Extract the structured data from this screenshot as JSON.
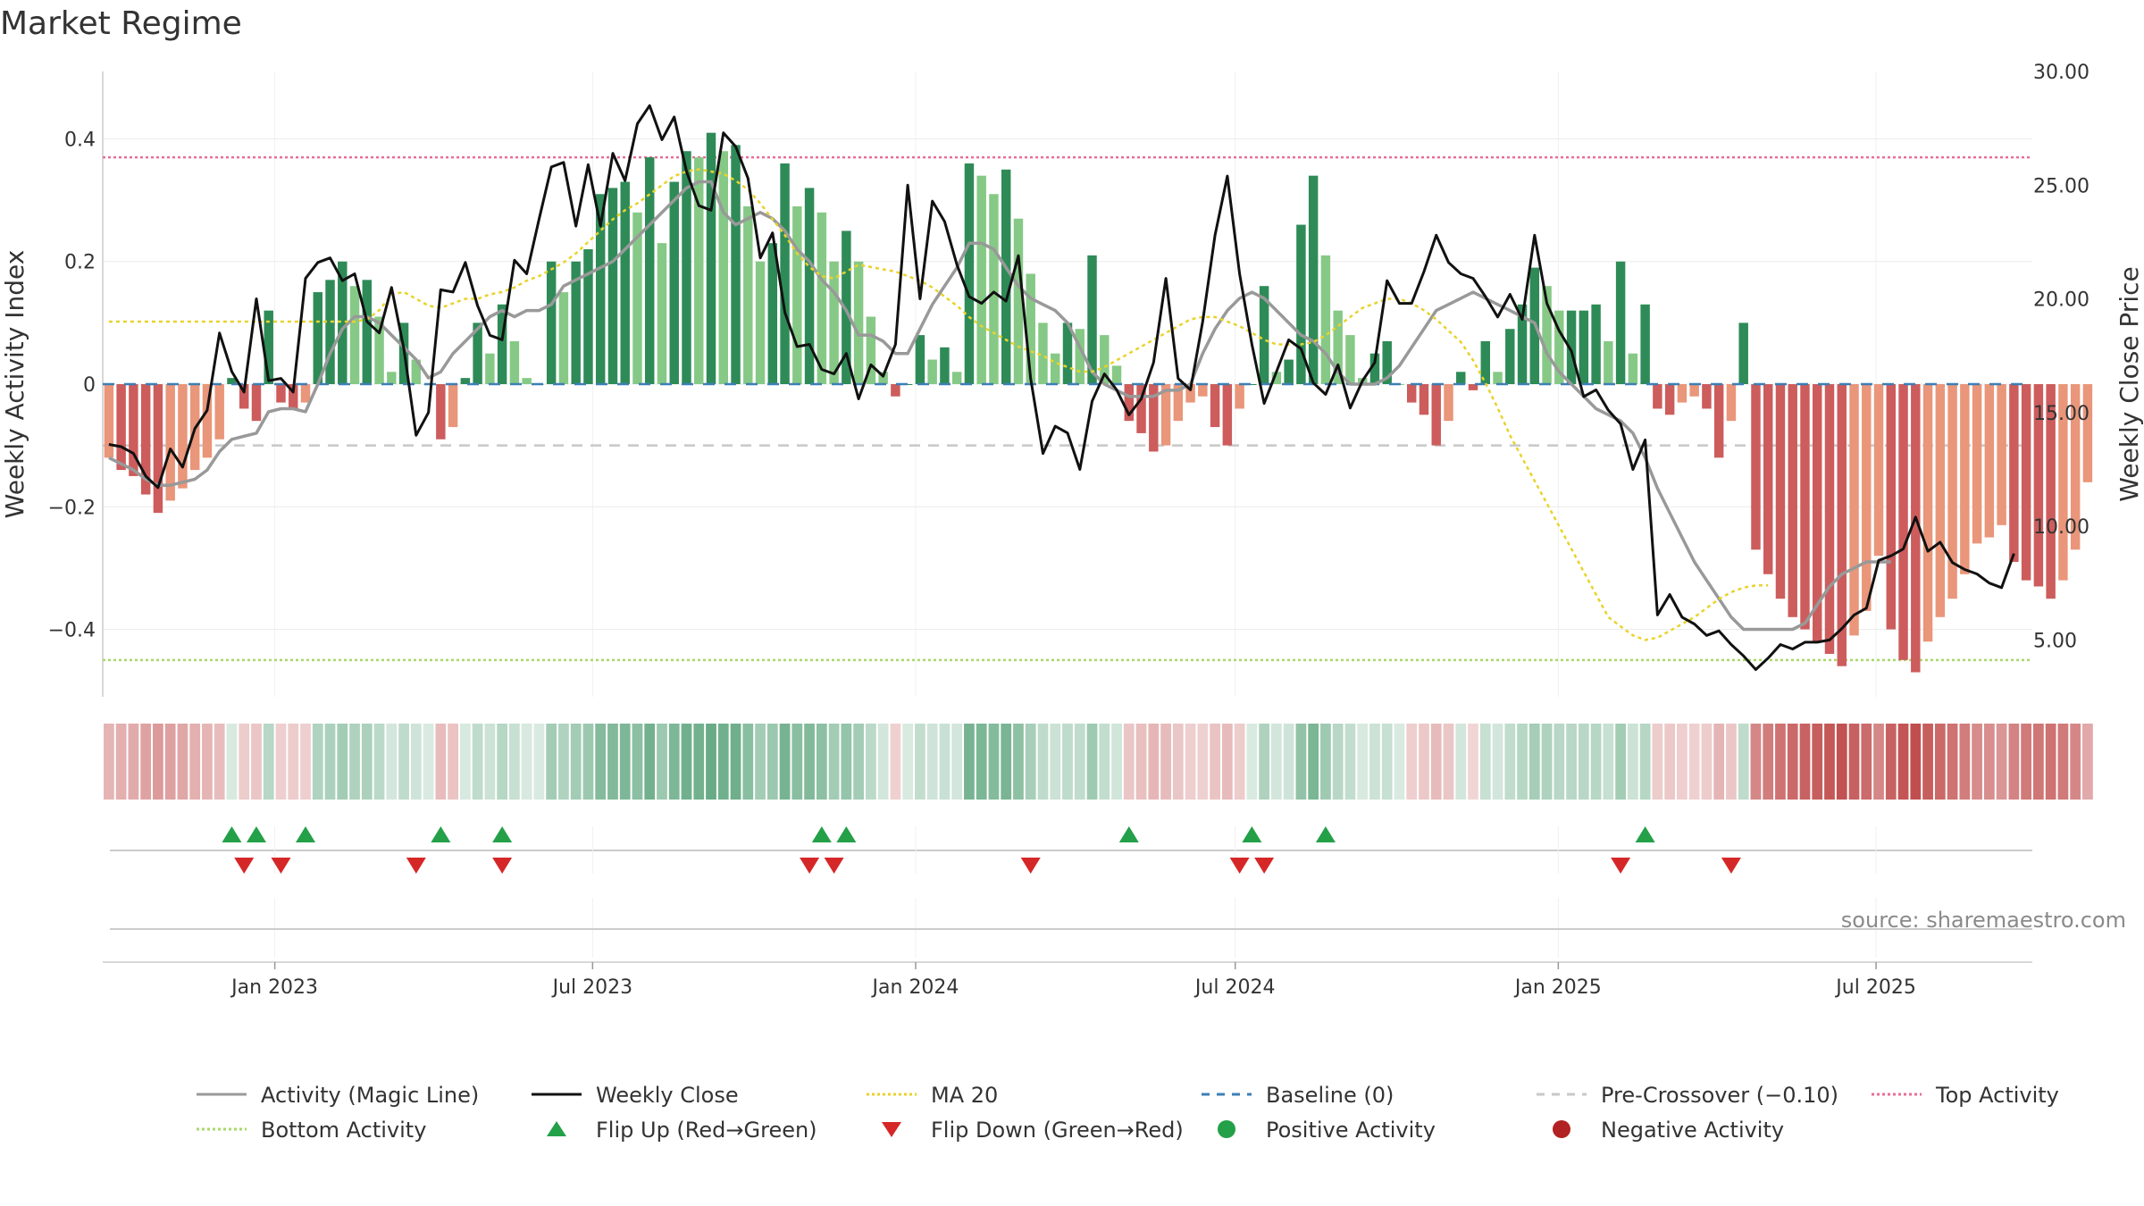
{
  "title": "Market Regime",
  "source": "source: sharemaestro.com",
  "chart_data": {
    "type": "bar",
    "title": "Market Regime",
    "ylabel": "Weekly Activity Index",
    "y2label": "Weekly Close Price",
    "ylim": [
      -0.51,
      0.51
    ],
    "y2lim": [
      2.5,
      30.0
    ],
    "yticks": [
      {
        "v": 0.4,
        "label": "0.4"
      },
      {
        "v": 0.2,
        "label": "0.2"
      },
      {
        "v": 0,
        "label": "0"
      },
      {
        "v": -0.2,
        "label": "−0.2"
      },
      {
        "v": -0.4,
        "label": "−0.4"
      }
    ],
    "y2ticks": [
      {
        "v": 30,
        "label": "30.00"
      },
      {
        "v": 25,
        "label": "25.00"
      },
      {
        "v": 20,
        "label": "20.00"
      },
      {
        "v": 15,
        "label": "15.00"
      },
      {
        "v": 10,
        "label": "10.00"
      },
      {
        "v": 5,
        "label": "5.00"
      }
    ],
    "x_range": [
      "2022-09-25",
      "2025-09-28"
    ],
    "xticks": [
      {
        "date": "2023-01-01",
        "label": "Jan 2023"
      },
      {
        "date": "2023-07-01",
        "label": "Jul 2023"
      },
      {
        "date": "2024-01-01",
        "label": "Jan 2024"
      },
      {
        "date": "2024-07-01",
        "label": "Jul 2024"
      },
      {
        "date": "2025-01-01",
        "label": "Jan 2025"
      },
      {
        "date": "2025-07-01",
        "label": "Jul 2025"
      }
    ],
    "week_start": "2022-09-25",
    "activity": [
      -0.12,
      -0.14,
      -0.15,
      -0.18,
      -0.21,
      -0.19,
      -0.17,
      -0.14,
      -0.12,
      -0.09,
      0.01,
      -0.04,
      -0.06,
      0.12,
      -0.03,
      -0.04,
      -0.03,
      0.15,
      0.17,
      0.2,
      0.16,
      0.17,
      0.11,
      0.02,
      0.1,
      0.04,
      0.0,
      -0.09,
      -0.07,
      0.01,
      0.1,
      0.05,
      0.13,
      0.07,
      0.01,
      0.0,
      0.2,
      0.15,
      0.2,
      0.22,
      0.31,
      0.32,
      0.33,
      0.28,
      0.37,
      0.23,
      0.33,
      0.38,
      0.37,
      0.41,
      0.38,
      0.39,
      0.29,
      0.2,
      0.23,
      0.36,
      0.29,
      0.32,
      0.28,
      0.2,
      0.25,
      0.2,
      0.11,
      0.02,
      -0.02,
      0.0,
      0.08,
      0.04,
      0.06,
      0.02,
      0.36,
      0.34,
      0.31,
      0.35,
      0.27,
      0.18,
      0.1,
      0.05,
      0.1,
      0.09,
      0.21,
      0.08,
      0.03,
      -0.06,
      -0.08,
      -0.11,
      -0.1,
      -0.06,
      -0.03,
      -0.02,
      -0.07,
      -0.1,
      -0.04,
      0.0,
      0.16,
      0.02,
      0.04,
      0.26,
      0.34,
      0.21,
      0.12,
      0.08,
      0.01,
      0.05,
      0.07,
      0.0,
      -0.03,
      -0.05,
      -0.1,
      -0.06,
      0.02,
      -0.01,
      0.07,
      0.02,
      0.09,
      0.13,
      0.19,
      0.16,
      0.12,
      0.12,
      0.12,
      0.13,
      0.07,
      0.2,
      0.05,
      0.13,
      -0.04,
      -0.05,
      -0.03,
      -0.02,
      -0.04,
      -0.12,
      -0.06,
      0.1,
      -0.27,
      -0.31,
      -0.35,
      -0.38,
      -0.4,
      -0.42,
      -0.44,
      -0.46,
      -0.41,
      -0.37,
      -0.28,
      -0.4,
      -0.45,
      -0.47,
      -0.42,
      -0.38,
      -0.35,
      -0.31,
      -0.26,
      -0.25,
      -0.23,
      -0.29,
      -0.32,
      -0.33,
      -0.35,
      -0.32,
      -0.27,
      -0.16
    ],
    "magic_line": [
      -0.12,
      -0.13,
      -0.14,
      -0.155,
      -0.165,
      -0.165,
      -0.16,
      -0.155,
      -0.14,
      -0.11,
      -0.09,
      -0.085,
      -0.08,
      -0.045,
      -0.04,
      -0.04,
      -0.045,
      0.0,
      0.05,
      0.09,
      0.11,
      0.11,
      0.1,
      0.08,
      0.06,
      0.04,
      0.01,
      0.02,
      0.05,
      0.07,
      0.09,
      0.11,
      0.12,
      0.11,
      0.12,
      0.12,
      0.13,
      0.16,
      0.17,
      0.18,
      0.19,
      0.2,
      0.22,
      0.24,
      0.26,
      0.28,
      0.3,
      0.32,
      0.33,
      0.33,
      0.28,
      0.26,
      0.27,
      0.28,
      0.27,
      0.25,
      0.22,
      0.2,
      0.17,
      0.15,
      0.12,
      0.08,
      0.08,
      0.07,
      0.05,
      0.05,
      0.09,
      0.13,
      0.16,
      0.19,
      0.23,
      0.23,
      0.22,
      0.19,
      0.16,
      0.14,
      0.13,
      0.12,
      0.1,
      0.06,
      0.02,
      -0.0,
      -0.01,
      -0.02,
      -0.02,
      -0.02,
      -0.01,
      -0.01,
      0.0,
      0.05,
      0.09,
      0.12,
      0.14,
      0.15,
      0.14,
      0.12,
      0.1,
      0.08,
      0.07,
      0.05,
      0.02,
      0.0,
      0.0,
      0.0,
      0.01,
      0.03,
      0.06,
      0.09,
      0.12,
      0.13,
      0.14,
      0.15,
      0.14,
      0.13,
      0.12,
      0.11,
      0.1,
      0.05,
      0.02,
      0.0,
      -0.02,
      -0.04,
      -0.05,
      -0.06,
      -0.08,
      -0.12,
      -0.17,
      -0.21,
      -0.25,
      -0.29,
      -0.32,
      -0.35,
      -0.38,
      -0.4,
      -0.4,
      -0.4,
      -0.4,
      -0.4,
      -0.39,
      -0.36,
      -0.33,
      -0.31,
      -0.3,
      -0.29,
      -0.29,
      -0.29
    ],
    "weekly_close": [
      13.6,
      13.5,
      13.2,
      12.2,
      11.7,
      13.4,
      12.6,
      14.3,
      15.1,
      18.5,
      16.8,
      15.9,
      20.0,
      16.4,
      16.5,
      15.9,
      20.9,
      21.6,
      21.8,
      20.8,
      21.1,
      19.0,
      18.5,
      20.5,
      17.8,
      14.0,
      15.0,
      20.4,
      20.3,
      21.6,
      19.7,
      18.4,
      18.2,
      21.7,
      21.1,
      23.5,
      25.8,
      26.0,
      23.2,
      25.9,
      23.2,
      26.4,
      25.2,
      27.7,
      28.5,
      27.0,
      28.0,
      25.6,
      24.1,
      23.9,
      27.3,
      26.7,
      25.3,
      21.8,
      22.9,
      19.4,
      17.9,
      18.0,
      16.9,
      16.7,
      17.6,
      15.6,
      17.1,
      16.6,
      18.0,
      25.0,
      20.0,
      24.3,
      23.4,
      21.5,
      20.1,
      19.8,
      20.3,
      19.9,
      21.9,
      16.5,
      13.2,
      14.4,
      14.1,
      12.5,
      15.5,
      16.7,
      16.0,
      14.9,
      15.6,
      17.2,
      20.9,
      16.5,
      16.0,
      19.0,
      22.8,
      25.4,
      21.1,
      18.0,
      15.4,
      16.8,
      18.2,
      17.8,
      16.3,
      15.8,
      17.1,
      15.2,
      16.4,
      17.2,
      20.8,
      19.8,
      19.8,
      21.2,
      22.8,
      21.6,
      21.1,
      20.9,
      20.1,
      19.2,
      20.2,
      19.1,
      22.8,
      19.8,
      18.6,
      17.7,
      15.7,
      16.0,
      15.1,
      14.5,
      12.5,
      13.8,
      6.1,
      7.0,
      6.0,
      5.7,
      5.2,
      5.4,
      4.8,
      4.3,
      3.7,
      4.2,
      4.8,
      4.6,
      4.9,
      4.9,
      5.0,
      5.5,
      6.1,
      6.4,
      8.5,
      8.7,
      9.0,
      10.4,
      8.9,
      9.3,
      8.4,
      8.1,
      7.9,
      7.5,
      7.3,
      8.8
    ],
    "ma20": [
      19.0,
      19.0,
      19.0,
      19.0,
      19.0,
      19.0,
      19.0,
      19.0,
      19.0,
      19.0,
      19.0,
      19.0,
      19.0,
      19.0,
      19.0,
      19.0,
      19.0,
      19.0,
      19.0,
      19.0,
      19.0,
      19.1,
      19.5,
      20.2,
      20.3,
      20.0,
      19.7,
      19.6,
      19.8,
      20.0,
      20.0,
      20.2,
      20.3,
      20.5,
      20.8,
      21.0,
      21.3,
      21.6,
      22.0,
      22.5,
      23.0,
      23.5,
      23.9,
      24.2,
      24.6,
      25.0,
      25.4,
      25.6,
      25.7,
      25.6,
      25.5,
      25.2,
      24.8,
      24.2,
      23.5,
      22.8,
      22.0,
      21.4,
      21.0,
      20.9,
      21.2,
      21.5,
      21.4,
      21.3,
      21.2,
      21.0,
      20.8,
      20.5,
      20.1,
      19.7,
      19.2,
      18.8,
      18.5,
      18.2,
      17.9,
      17.7,
      17.5,
      17.2,
      17.0,
      16.8,
      16.8,
      17.0,
      17.3,
      17.6,
      17.9,
      18.2,
      18.5,
      18.8,
      19.1,
      19.2,
      19.2,
      19.0,
      18.8,
      18.5,
      18.2,
      18.0,
      18.0,
      18.0,
      18.1,
      18.4,
      18.8,
      19.2,
      19.6,
      19.8,
      20.0,
      20.0,
      19.8,
      19.5,
      19.1,
      18.6,
      18.1,
      17.3,
      16.3,
      15.2,
      14.0,
      13.0,
      12.0,
      11.0,
      10.0,
      9.0,
      8.0,
      7.0,
      6.0,
      5.6,
      5.2,
      5.0,
      5.1,
      5.4,
      5.7,
      6.0,
      6.4,
      6.8,
      7.1,
      7.3,
      7.4,
      7.4
    ],
    "ma20_start": 22,
    "positive_color": "#2e8b57",
    "negative_color": "#b22222",
    "baseline": 0,
    "pre_crossover": -0.1,
    "top_activity": 0.37,
    "bottom_activity": -0.45,
    "flip_up_weeks": [
      10,
      12,
      16,
      27,
      32,
      58,
      60,
      83,
      93,
      99,
      125
    ],
    "flip_down_weeks": [
      11,
      14,
      25,
      32,
      57,
      59,
      75,
      92,
      94,
      123,
      132
    ],
    "colors": {
      "magic_line": "#999999",
      "weekly_close": "#111111",
      "ma20": "#e8d32a",
      "baseline": "#3d7fb5",
      "pre_crossover": "#c8c8c8",
      "top_activity": "#e86d9a",
      "bottom_activity": "#a8d86a",
      "flip_up": "#23a048",
      "flip_down": "#d62728",
      "pos_dark": "#2e8b57",
      "pos_light": "#86c986",
      "neg_dark": "#cd5c5c",
      "neg_light": "#e9967a"
    },
    "legend": [
      {
        "label": "Activity (Magic Line)",
        "type": "line",
        "color": "#999999",
        "dash": ""
      },
      {
        "label": "Weekly Close",
        "type": "line",
        "color": "#111111",
        "dash": ""
      },
      {
        "label": "MA 20",
        "type": "line",
        "color": "#e8d32a",
        "dash": "3,3"
      },
      {
        "label": "Baseline (0)",
        "type": "line",
        "color": "#3d7fb5",
        "dash": "9,8"
      },
      {
        "label": "Pre-Crossover (−0.10)",
        "type": "line",
        "color": "#c8c8c8",
        "dash": "9,8"
      },
      {
        "label": "Top Activity",
        "type": "line",
        "color": "#e86d9a",
        "dash": "3,3"
      },
      {
        "label": "Bottom Activity",
        "type": "line",
        "color": "#a8d86a",
        "dash": "3,3"
      },
      {
        "label": "Flip Up (Red→Green)",
        "type": "tri-up",
        "color": "#23a048",
        "dash": ""
      },
      {
        "label": "Flip Down (Green→Red)",
        "type": "tri-down",
        "color": "#d62728",
        "dash": ""
      },
      {
        "label": "Positive Activity",
        "type": "dot",
        "color": "#23a048",
        "dash": ""
      },
      {
        "label": "Negative Activity",
        "type": "dot",
        "color": "#b22222",
        "dash": ""
      }
    ],
    "legend_position": "bottom"
  }
}
